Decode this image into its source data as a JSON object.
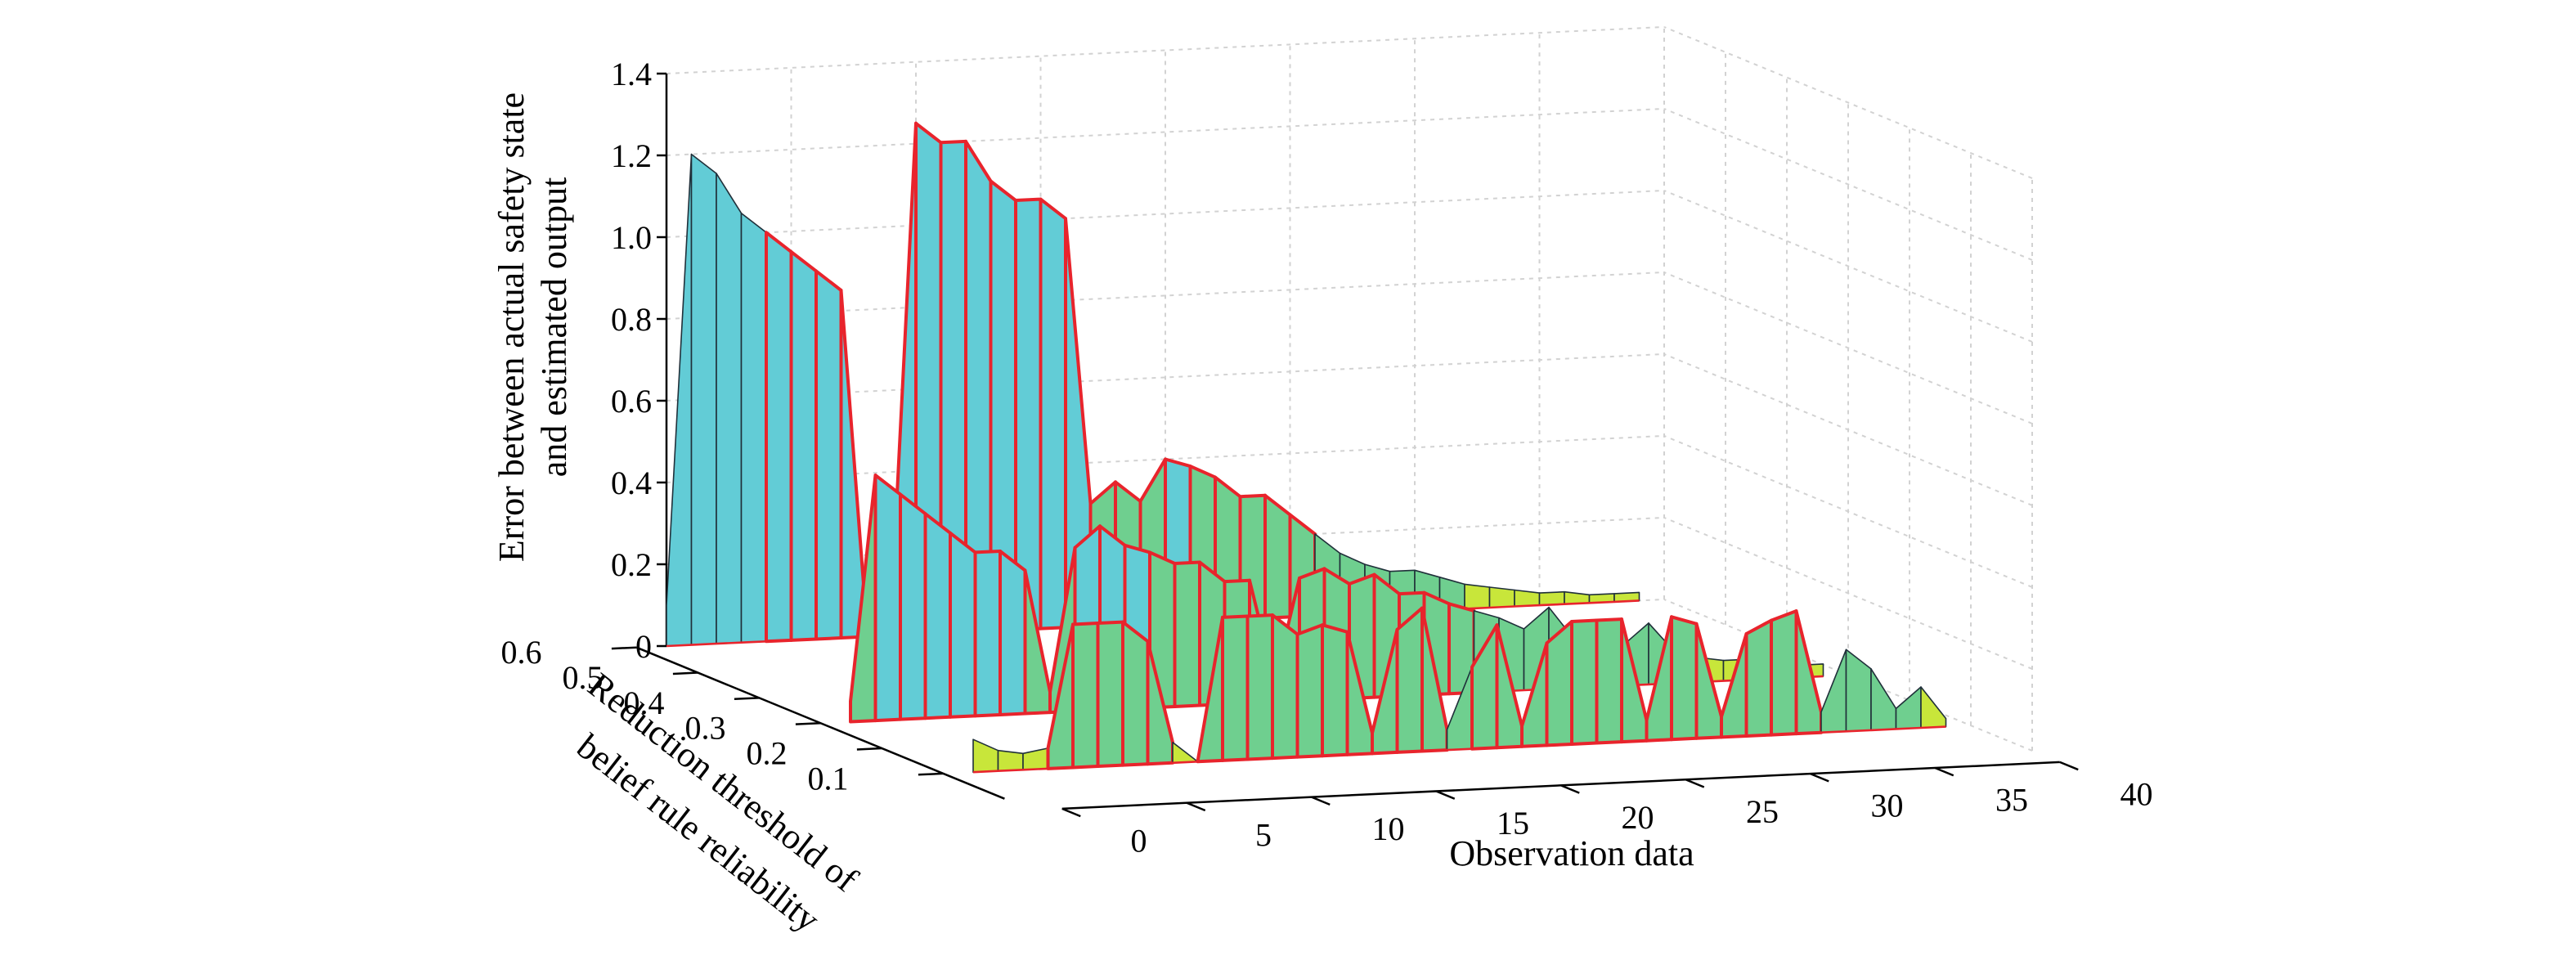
{
  "chart_data": {
    "type": "surface3d",
    "xlabel": "Observation data",
    "ylabel": "Reduction threshold of belief rule reliability",
    "zlabel": "Error between actual safety state and estimated output",
    "zlabel_lines": [
      "Error between actual safety state",
      "and estimated output"
    ],
    "ylabel_lines": [
      "Reduction threshold of",
      "belief rule reliability"
    ],
    "xlim": [
      0,
      40
    ],
    "ylim": [
      0,
      0.6
    ],
    "zlim": [
      0,
      1.4
    ],
    "x_ticks": [
      0,
      5,
      10,
      15,
      20,
      25,
      30,
      35,
      40
    ],
    "y_ticks": [
      0.6,
      0.5,
      0.4,
      0.3,
      0.2,
      0.1
    ],
    "y_tick_labels": [
      "0.6",
      "0.5",
      "0.4",
      "0.3",
      "0.2",
      "0.1"
    ],
    "z_ticks": [
      0,
      0.2,
      0.4,
      0.6,
      0.8,
      1.0,
      1.2,
      1.4
    ],
    "z_tick_labels": [
      "0",
      "0.2",
      "0.4",
      "0.6",
      "0.8",
      "1.0",
      "1.2",
      "1.4"
    ],
    "grid": true,
    "colors": {
      "panel_high": "#62ccd6",
      "panel_mid": "#6fcf8f",
      "panel_low": "#c8e63a",
      "highlight_edge": "#e8242c",
      "edge": "#20303a",
      "grid": "#d2d2d2"
    },
    "series": [
      {
        "y": 0.6,
        "x": [
          0,
          1,
          2,
          3,
          4,
          5,
          6,
          7,
          8,
          9,
          10,
          11,
          12,
          13,
          14,
          15,
          16,
          17,
          18,
          19,
          20,
          21,
          22,
          23,
          24,
          25,
          26,
          27,
          28,
          29,
          30,
          31,
          32,
          33,
          34,
          35,
          36,
          37,
          38,
          39
        ],
        "z": [
          0.1,
          1.2,
          1.15,
          1.05,
          1.0,
          0.95,
          0.9,
          0.85,
          0.05,
          0.05,
          1.25,
          1.2,
          1.2,
          1.1,
          1.05,
          1.05,
          1.0,
          0.3,
          0.35,
          0.3,
          0.4,
          0.38,
          0.35,
          0.3,
          0.3,
          0.25,
          0.2,
          0.15,
          0.12,
          0.1,
          0.1,
          0.08,
          0.06,
          0.05,
          0.04,
          0.03,
          0.03,
          0.02,
          0.02,
          0.02
        ]
      },
      {
        "y": 0.3,
        "x": [
          0,
          1,
          2,
          3,
          4,
          5,
          6,
          7,
          8,
          9,
          10,
          11,
          12,
          13,
          14,
          15,
          16,
          17,
          18,
          19,
          20,
          21,
          22,
          23,
          24,
          25,
          26,
          27,
          28,
          29,
          30,
          31,
          32,
          33,
          34,
          35,
          36,
          37,
          38,
          39
        ],
        "z": [
          0.05,
          0.6,
          0.55,
          0.5,
          0.45,
          0.4,
          0.4,
          0.35,
          0.05,
          0.4,
          0.45,
          0.4,
          0.38,
          0.35,
          0.35,
          0.3,
          0.3,
          0.05,
          0.3,
          0.32,
          0.28,
          0.3,
          0.25,
          0.25,
          0.22,
          0.2,
          0.18,
          0.15,
          0.2,
          0.12,
          0.12,
          0.1,
          0.15,
          0.08,
          0.06,
          0.05,
          0.05,
          0.04,
          0.03,
          0.03
        ]
      },
      {
        "y": 0.1,
        "x": [
          0,
          1,
          2,
          3,
          4,
          5,
          6,
          7,
          8,
          9,
          10,
          11,
          12,
          13,
          14,
          15,
          16,
          17,
          18,
          19,
          20,
          21,
          22,
          23,
          24,
          25,
          26,
          27,
          28,
          29,
          30,
          31,
          32,
          33,
          34,
          35,
          36,
          37,
          38,
          39
        ],
        "z": [
          0.08,
          0.05,
          0.04,
          0.05,
          0.35,
          0.35,
          0.35,
          0.3,
          0.05,
          0.0,
          0.35,
          0.35,
          0.35,
          0.3,
          0.32,
          0.3,
          0.05,
          0.3,
          0.35,
          0.05,
          0.2,
          0.3,
          0.05,
          0.25,
          0.3,
          0.3,
          0.3,
          0.05,
          0.3,
          0.28,
          0.05,
          0.25,
          0.28,
          0.3,
          0.05,
          0.2,
          0.15,
          0.05,
          0.1,
          0.02
        ]
      }
    ]
  }
}
